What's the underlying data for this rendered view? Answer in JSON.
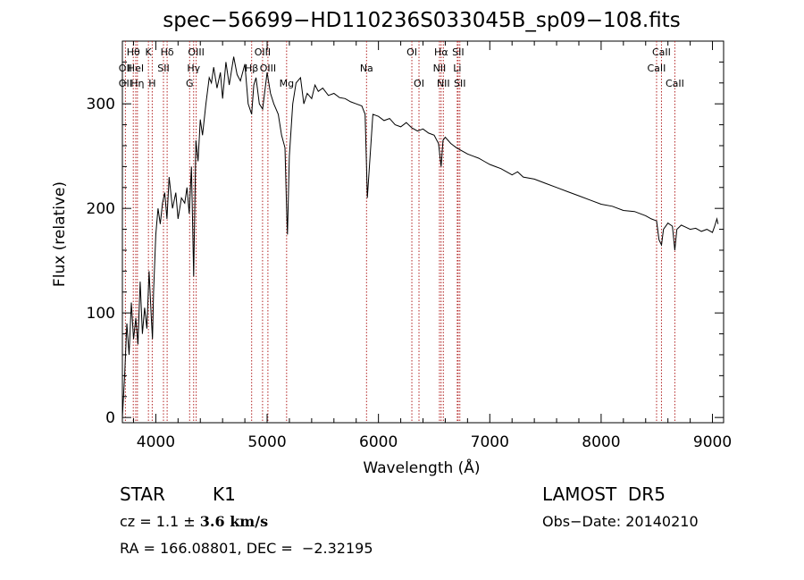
{
  "chart_data": {
    "type": "line",
    "title": "spec−56699−HD110236S033045B_sp09−108.fits",
    "xlabel": "Wavelength (Å)",
    "ylabel": "Flux (relative)",
    "xlim": [
      3700,
      9100
    ],
    "ylim": [
      -5,
      360
    ],
    "xticks": [
      4000,
      5000,
      6000,
      7000,
      8000,
      9000
    ],
    "yticks": [
      0,
      100,
      200,
      300
    ],
    "grid": false,
    "line_color": "#000000",
    "marker_color": "#b22222",
    "x": [
      3700,
      3720,
      3740,
      3760,
      3780,
      3800,
      3820,
      3840,
      3860,
      3880,
      3900,
      3920,
      3940,
      3960,
      3970,
      3980,
      4000,
      4020,
      4040,
      4060,
      4080,
      4100,
      4120,
      4150,
      4180,
      4200,
      4230,
      4260,
      4280,
      4300,
      4320,
      4340,
      4360,
      4380,
      4400,
      4420,
      4450,
      4480,
      4500,
      4520,
      4550,
      4580,
      4600,
      4630,
      4660,
      4700,
      4730,
      4760,
      4800,
      4830,
      4861,
      4880,
      4900,
      4930,
      4960,
      5000,
      5030,
      5060,
      5100,
      5130,
      5160,
      5175,
      5183,
      5200,
      5230,
      5260,
      5300,
      5330,
      5360,
      5400,
      5430,
      5460,
      5500,
      5550,
      5600,
      5650,
      5700,
      5750,
      5800,
      5850,
      5880,
      5893,
      5900,
      5950,
      6000,
      6050,
      6100,
      6150,
      6200,
      6250,
      6300,
      6350,
      6400,
      6450,
      6500,
      6540,
      6563,
      6580,
      6600,
      6650,
      6700,
      6750,
      6800,
      6850,
      6900,
      6950,
      7000,
      7050,
      7100,
      7150,
      7200,
      7250,
      7300,
      7400,
      7500,
      7600,
      7700,
      7800,
      7900,
      8000,
      8100,
      8200,
      8300,
      8400,
      8450,
      8498,
      8520,
      8542,
      8560,
      8600,
      8640,
      8662,
      8680,
      8720,
      8760,
      8800,
      8850,
      8900,
      8950,
      9000,
      9020,
      9040,
      9050
    ],
    "y": [
      0,
      40,
      90,
      60,
      110,
      75,
      95,
      70,
      130,
      80,
      105,
      85,
      140,
      95,
      75,
      120,
      175,
      200,
      185,
      205,
      215,
      190,
      230,
      200,
      215,
      190,
      210,
      205,
      220,
      195,
      240,
      135,
      265,
      245,
      285,
      270,
      300,
      325,
      320,
      335,
      315,
      330,
      305,
      340,
      318,
      345,
      328,
      322,
      338,
      300,
      290,
      318,
      325,
      300,
      295,
      330,
      310,
      300,
      290,
      270,
      258,
      200,
      175,
      250,
      300,
      320,
      325,
      300,
      310,
      305,
      318,
      312,
      315,
      308,
      310,
      306,
      305,
      302,
      300,
      298,
      290,
      240,
      210,
      290,
      288,
      284,
      286,
      280,
      278,
      282,
      277,
      274,
      276,
      272,
      270,
      262,
      240,
      265,
      268,
      262,
      258,
      255,
      252,
      250,
      248,
      245,
      242,
      240,
      238,
      235,
      232,
      235,
      230,
      228,
      224,
      220,
      216,
      212,
      208,
      204,
      202,
      198,
      197,
      193,
      190,
      188,
      170,
      165,
      180,
      186,
      183,
      160,
      180,
      184,
      182,
      180,
      181,
      178,
      180,
      177,
      183,
      190,
      185
    ],
    "lines": [
      {
        "label": "Hθ",
        "x": 3798,
        "row": 0
      },
      {
        "label": "OII",
        "x": 3727,
        "row": 1
      },
      {
        "label": "OII",
        "x": 3727,
        "row": 2
      },
      {
        "label": "HeI",
        "x": 3820,
        "row": 1
      },
      {
        "label": "Hη",
        "x": 3835,
        "row": 2
      },
      {
        "label": "K",
        "x": 3934,
        "row": 0
      },
      {
        "label": "H",
        "x": 3968,
        "row": 2
      },
      {
        "label": "SII",
        "x": 4069,
        "row": 1
      },
      {
        "label": "Hδ",
        "x": 4102,
        "row": 0
      },
      {
        "label": "OIII",
        "x": 4363,
        "row": 0
      },
      {
        "label": "Hγ",
        "x": 4340,
        "row": 1
      },
      {
        "label": "G",
        "x": 4304,
        "row": 2
      },
      {
        "label": "Hβ",
        "x": 4861,
        "row": 1
      },
      {
        "label": "OIII",
        "x": 4959,
        "row": 0
      },
      {
        "label": "OIII",
        "x": 5007,
        "row": 1
      },
      {
        "label": "Mg",
        "x": 5175,
        "row": 2
      },
      {
        "label": "Na",
        "x": 5893,
        "row": 1
      },
      {
        "label": "OI",
        "x": 6300,
        "row": 0
      },
      {
        "label": "OI",
        "x": 6364,
        "row": 2
      },
      {
        "label": "Hα",
        "x": 6563,
        "row": 0
      },
      {
        "label": "NII",
        "x": 6548,
        "row": 1
      },
      {
        "label": "NII",
        "x": 6583,
        "row": 2
      },
      {
        "label": "SII",
        "x": 6716,
        "row": 0
      },
      {
        "label": "Li",
        "x": 6708,
        "row": 1
      },
      {
        "label": "SII",
        "x": 6731,
        "row": 2
      },
      {
        "label": "CaII",
        "x": 8542,
        "row": 0
      },
      {
        "label": "CaII",
        "x": 8498,
        "row": 1
      },
      {
        "label": "CaII",
        "x": 8662,
        "row": 2
      }
    ]
  },
  "info": {
    "object_class": "STAR",
    "subclass": "K1",
    "survey": "LAMOST  DR5",
    "cz_prefix": "cz = 1.1 ± ",
    "cz_error": "3.6 km/s",
    "obs_date": "Obs−Date: 20140210",
    "coords": "RA = 166.08801, DEC =  −2.32195"
  }
}
